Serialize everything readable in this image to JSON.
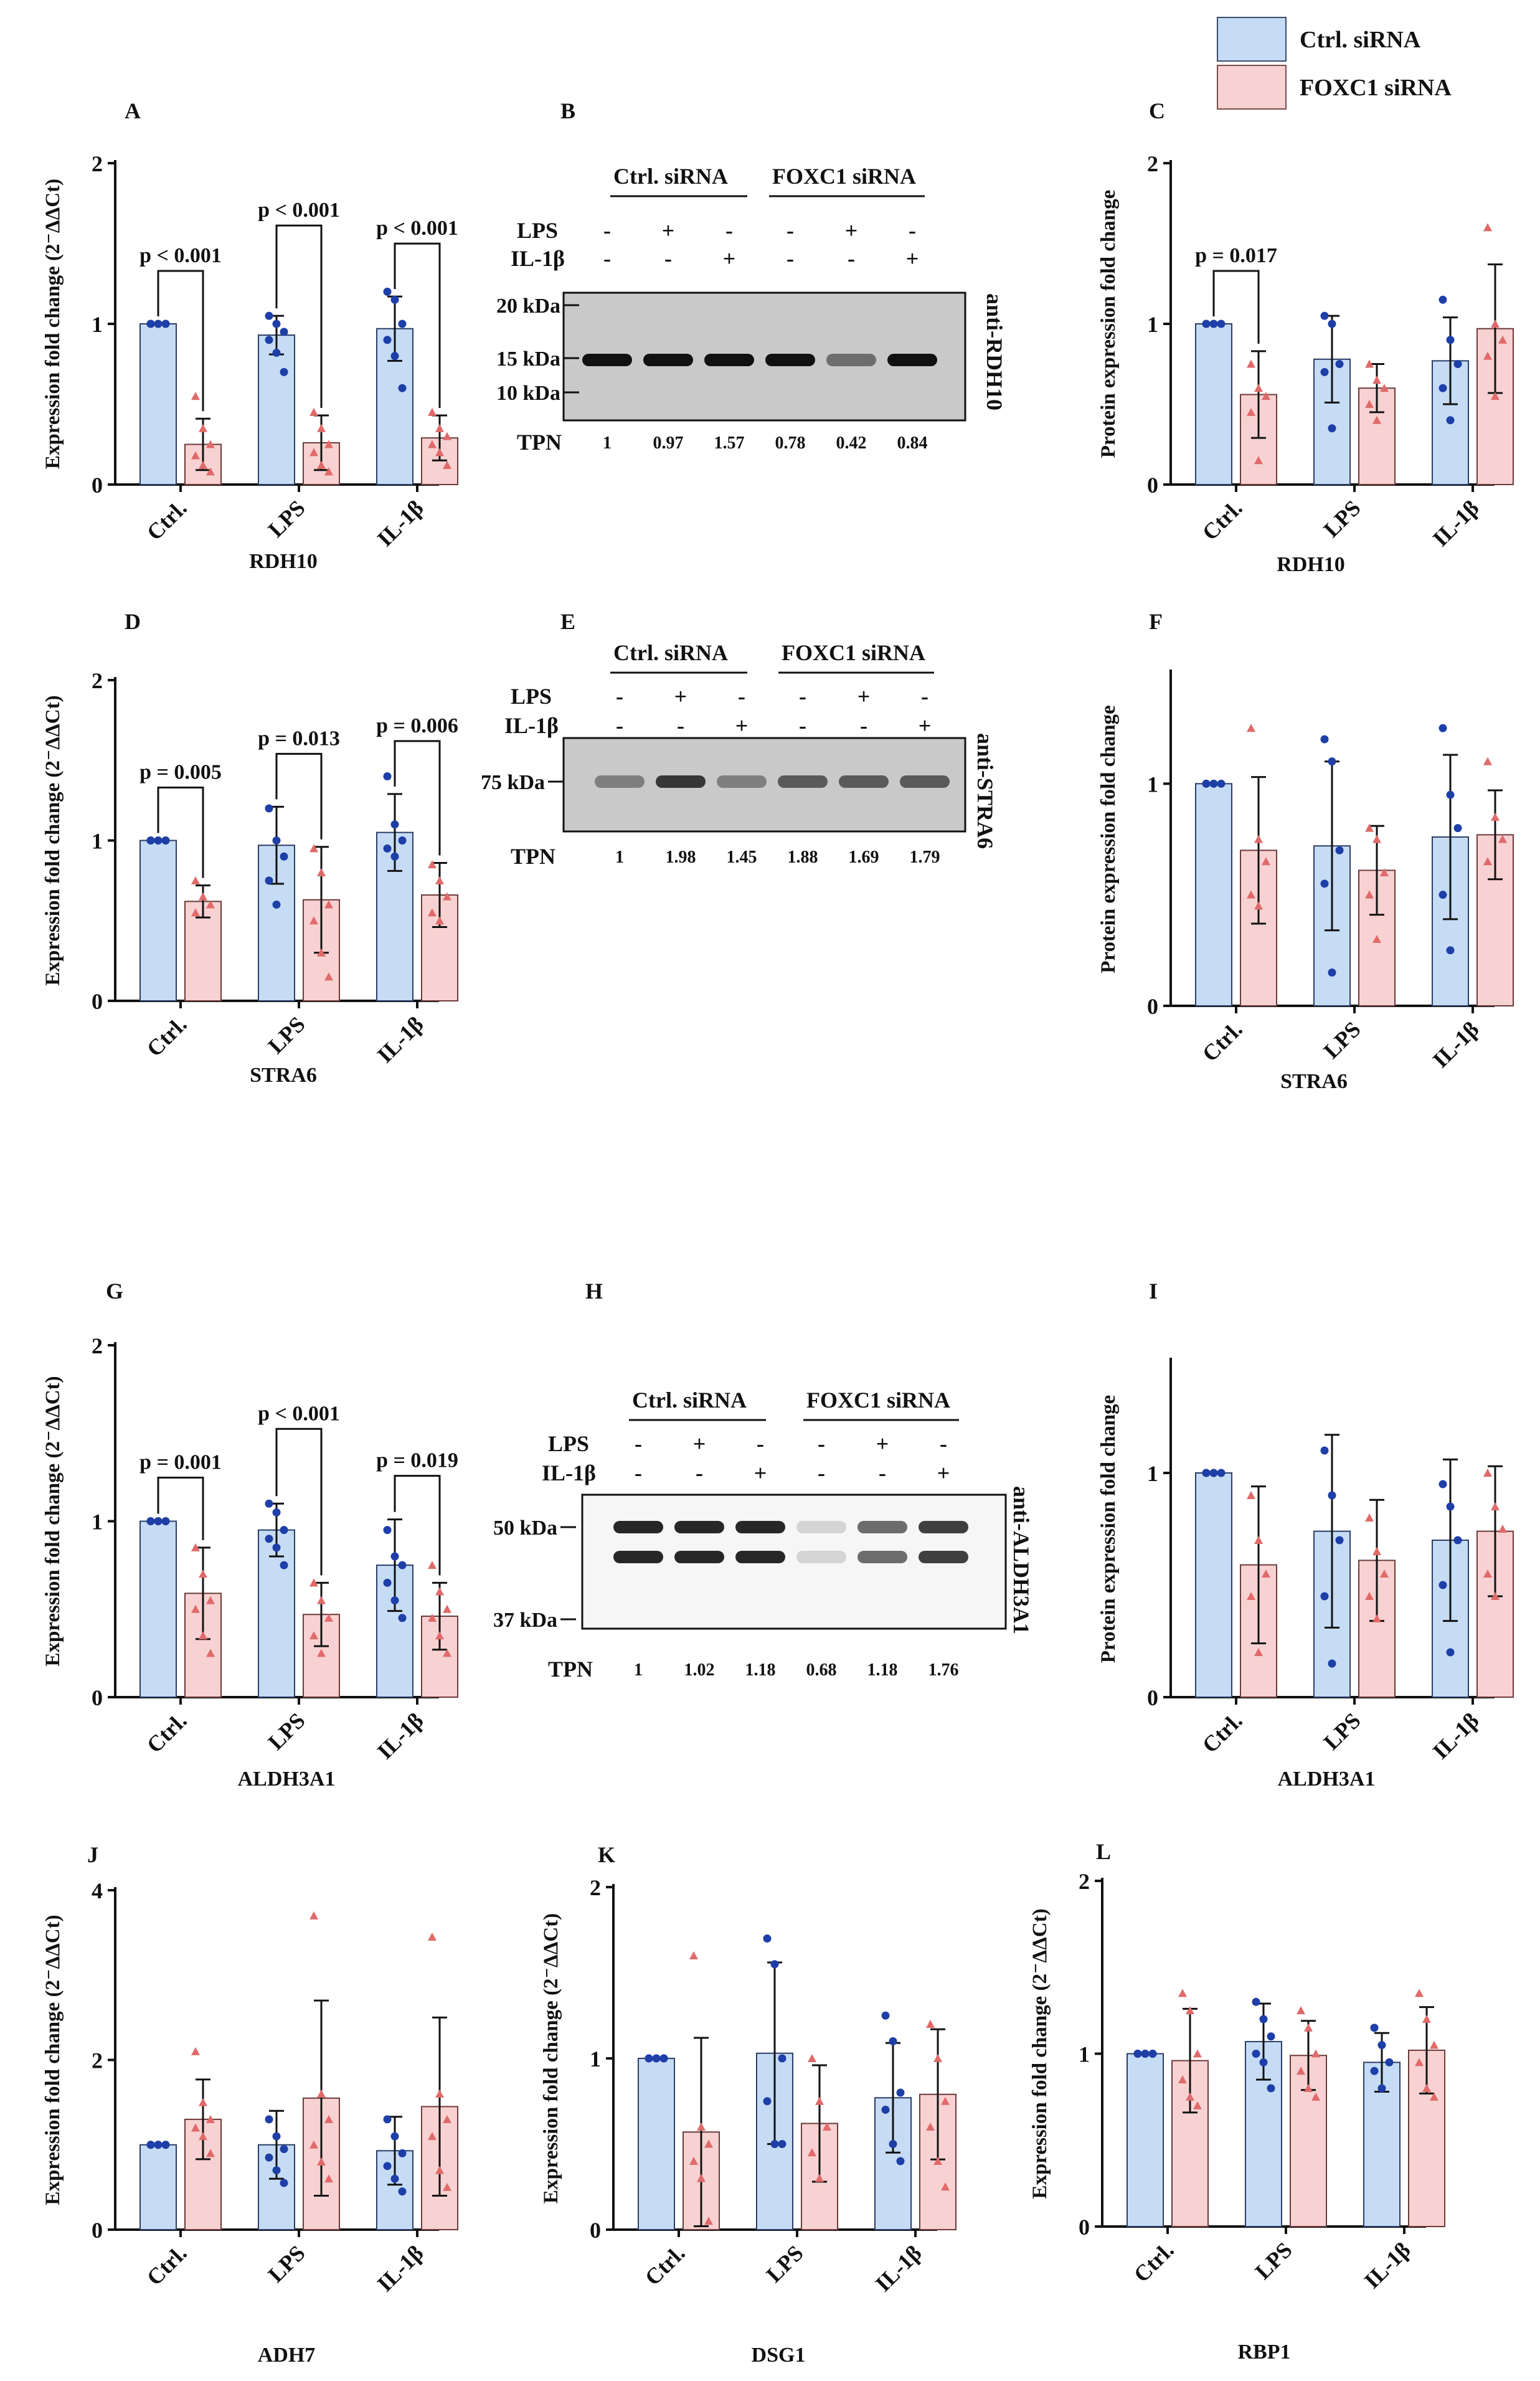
{
  "legend": {
    "items": [
      {
        "label": "Ctrl. siRNA",
        "fill": "#c6dcf5",
        "stroke": "#3a4a6a"
      },
      {
        "label": "FOXC1 siRNA",
        "fill": "#f8d2d2",
        "stroke": "#7a4a4a"
      }
    ]
  },
  "colors": {
    "ctrl_fill": "#c6dcf5",
    "ctrl_point": "#1e3fa8",
    "foxc_fill": "#f8d2d2",
    "foxc_point": "#e06a6a"
  },
  "chart_data": [
    {
      "panel": "A",
      "type": "bar",
      "xlabel": "RDH10",
      "ylabel": "Expression fold change (2⁻ΔΔCt)",
      "ylim": [
        0,
        2
      ],
      "yticks": [
        "0",
        "1",
        "2"
      ],
      "categories": [
        "Ctrl.",
        "LPS",
        "IL-1β"
      ],
      "series": [
        {
          "name": "Ctrl. siRNA",
          "values": [
            1.0,
            0.93,
            0.97
          ],
          "sd": [
            0.0,
            0.12,
            0.2
          ],
          "points": [
            [
              1,
              1,
              1,
              1,
              1,
              1
            ],
            [
              1.05,
              1.0,
              0.95,
              0.9,
              0.82,
              0.7
            ],
            [
              1.2,
              1.15,
              1.0,
              0.9,
              0.8,
              0.6
            ]
          ]
        },
        {
          "name": "FOXC1 siRNA",
          "values": [
            0.25,
            0.26,
            0.29
          ],
          "sd": [
            0.16,
            0.17,
            0.14
          ],
          "points": [
            [
              0.55,
              0.35,
              0.25,
              0.18,
              0.12,
              0.08
            ],
            [
              0.45,
              0.35,
              0.25,
              0.2,
              0.12,
              0.08
            ],
            [
              0.45,
              0.35,
              0.3,
              0.25,
              0.2,
              0.12
            ]
          ]
        }
      ],
      "pvalues": [
        "p < 0.001",
        "p < 0.001",
        "p < 0.001"
      ]
    },
    {
      "panel": "C",
      "type": "bar",
      "xlabel": "RDH10",
      "ylabel": "Protein expression fold change",
      "ylim": [
        0,
        2
      ],
      "yticks": [
        "0",
        "1",
        "2"
      ],
      "categories": [
        "Ctrl.",
        "LPS",
        "IL-1β"
      ],
      "series": [
        {
          "name": "Ctrl. siRNA",
          "values": [
            1.0,
            0.78,
            0.77
          ],
          "sd": [
            0.0,
            0.27,
            0.27
          ],
          "points": [
            [
              1,
              1,
              1,
              1,
              1
            ],
            [
              1.05,
              1.0,
              0.75,
              0.7,
              0.35
            ],
            [
              1.15,
              0.9,
              0.75,
              0.6,
              0.4
            ]
          ]
        },
        {
          "name": "FOXC1 siRNA",
          "values": [
            0.56,
            0.6,
            0.97
          ],
          "sd": [
            0.27,
            0.15,
            0.4
          ],
          "points": [
            [
              0.75,
              0.6,
              0.55,
              0.45,
              0.15
            ],
            [
              0.75,
              0.65,
              0.6,
              0.5,
              0.4
            ],
            [
              1.6,
              1.0,
              0.9,
              0.8,
              0.55
            ]
          ]
        }
      ],
      "pvalues": [
        "p = 0.017",
        "",
        ""
      ]
    },
    {
      "panel": "D",
      "type": "bar",
      "xlabel": "STRA6",
      "ylabel": "Expression fold change (2⁻ΔΔCt)",
      "ylim": [
        0,
        2
      ],
      "yticks": [
        "0",
        "1",
        "2"
      ],
      "categories": [
        "Ctrl.",
        "LPS",
        "IL-1β"
      ],
      "series": [
        {
          "name": "Ctrl. siRNA",
          "values": [
            1.0,
            0.97,
            1.05
          ],
          "sd": [
            0.0,
            0.24,
            0.24
          ],
          "points": [
            [
              1,
              1,
              1,
              1,
              1,
              1
            ],
            [
              1.2,
              1.0,
              0.9,
              0.75,
              0.6
            ],
            [
              1.4,
              1.1,
              1.0,
              0.95,
              0.9
            ]
          ]
        },
        {
          "name": "FOXC1 siRNA",
          "values": [
            0.62,
            0.63,
            0.66
          ],
          "sd": [
            0.1,
            0.33,
            0.2
          ],
          "points": [
            [
              0.75,
              0.65,
              0.6,
              0.55
            ],
            [
              0.95,
              0.8,
              0.6,
              0.5,
              0.3,
              0.15
            ],
            [
              0.85,
              0.75,
              0.65,
              0.55,
              0.5
            ]
          ]
        }
      ],
      "pvalues": [
        "p = 0.005",
        "p = 0.013",
        "p = 0.006"
      ]
    },
    {
      "panel": "F",
      "type": "bar",
      "xlabel": "STRA6",
      "ylabel": "Protein expression fold change",
      "ylim": [
        0,
        1.5
      ],
      "yticks": [
        "0",
        "1"
      ],
      "categories": [
        "Ctrl.",
        "LPS",
        "IL-1β"
      ],
      "series": [
        {
          "name": "Ctrl. siRNA",
          "values": [
            1.0,
            0.72,
            0.76
          ],
          "sd": [
            0.0,
            0.38,
            0.37
          ],
          "points": [
            [
              1,
              1,
              1,
              1,
              1
            ],
            [
              1.2,
              1.1,
              0.7,
              0.55,
              0.15
            ],
            [
              1.25,
              0.95,
              0.8,
              0.5,
              0.25
            ]
          ]
        },
        {
          "name": "FOXC1 siRNA",
          "values": [
            0.7,
            0.61,
            0.77
          ],
          "sd": [
            0.33,
            0.2,
            0.2
          ],
          "points": [
            [
              1.25,
              0.75,
              0.65,
              0.5,
              0.45
            ],
            [
              0.8,
              0.75,
              0.6,
              0.5,
              0.3
            ],
            [
              1.1,
              0.85,
              0.75,
              0.65
            ]
          ]
        }
      ],
      "pvalues": [
        "",
        "",
        ""
      ]
    },
    {
      "panel": "G",
      "type": "bar",
      "xlabel": "ALDH3A1",
      "ylabel": "Expression fold change (2⁻ΔΔCt)",
      "ylim": [
        0,
        2
      ],
      "yticks": [
        "0",
        "1",
        "2"
      ],
      "categories": [
        "Ctrl.",
        "LPS",
        "IL-1β"
      ],
      "series": [
        {
          "name": "Ctrl. siRNA",
          "values": [
            1.0,
            0.95,
            0.75
          ],
          "sd": [
            0.0,
            0.15,
            0.26
          ],
          "points": [
            [
              1,
              1,
              1,
              1,
              1,
              1
            ],
            [
              1.1,
              1.05,
              0.95,
              0.9,
              0.85,
              0.75
            ],
            [
              0.95,
              0.8,
              0.75,
              0.65,
              0.55,
              0.45
            ]
          ]
        },
        {
          "name": "FOXC1 siRNA",
          "values": [
            0.59,
            0.47,
            0.46
          ],
          "sd": [
            0.26,
            0.18,
            0.19
          ],
          "points": [
            [
              0.85,
              0.7,
              0.55,
              0.5,
              0.35,
              0.25
            ],
            [
              0.65,
              0.55,
              0.45,
              0.35,
              0.25
            ],
            [
              0.75,
              0.6,
              0.5,
              0.45,
              0.35,
              0.25
            ]
          ]
        }
      ],
      "pvalues": [
        "p = 0.001",
        "p < 0.001",
        "p = 0.019"
      ]
    },
    {
      "panel": "I",
      "type": "bar",
      "xlabel": "ALDH3A1",
      "ylabel": "Protein expression fold change",
      "ylim": [
        0,
        1.5
      ],
      "yticks": [
        "0",
        "1"
      ],
      "categories": [
        "Ctrl.",
        "LPS",
        "IL-1β"
      ],
      "series": [
        {
          "name": "Ctrl. siRNA",
          "values": [
            1.0,
            0.74,
            0.7
          ],
          "sd": [
            0.0,
            0.43,
            0.36
          ],
          "points": [
            [
              1,
              1,
              1,
              1,
              1
            ],
            [
              1.1,
              0.9,
              0.7,
              0.45,
              0.15
            ],
            [
              0.95,
              0.85,
              0.7,
              0.5,
              0.2
            ]
          ]
        },
        {
          "name": "FOXC1 siRNA",
          "values": [
            0.59,
            0.61,
            0.74
          ],
          "sd": [
            0.35,
            0.27,
            0.29
          ],
          "points": [
            [
              0.9,
              0.7,
              0.55,
              0.45,
              0.2
            ],
            [
              0.8,
              0.65,
              0.55,
              0.45,
              0.35
            ],
            [
              1.0,
              0.85,
              0.75,
              0.55,
              0.45
            ]
          ]
        }
      ],
      "pvalues": [
        "",
        "",
        ""
      ]
    },
    {
      "panel": "J",
      "type": "bar",
      "xlabel": "ADH7",
      "ylabel": "Expression fold change (2⁻ΔΔCt)",
      "ylim": [
        0,
        4
      ],
      "yticks": [
        "0",
        "2",
        "4"
      ],
      "categories": [
        "Ctrl.",
        "LPS",
        "IL-1β"
      ],
      "series": [
        {
          "name": "Ctrl. siRNA",
          "values": [
            1.0,
            1.0,
            0.93
          ],
          "sd": [
            0.0,
            0.4,
            0.4
          ],
          "points": [
            [
              1,
              1,
              1,
              1,
              1,
              1
            ],
            [
              1.3,
              1.1,
              0.95,
              0.85,
              0.7,
              0.55
            ],
            [
              1.3,
              1.1,
              0.9,
              0.75,
              0.6,
              0.45
            ]
          ]
        },
        {
          "name": "FOXC1 siRNA",
          "values": [
            1.3,
            1.55,
            1.45
          ],
          "sd": [
            0.47,
            1.15,
            1.05
          ],
          "points": [
            [
              2.1,
              1.5,
              1.3,
              1.2,
              1.1,
              0.9
            ],
            [
              3.7,
              1.6,
              1.3,
              1.0,
              0.8,
              0.6
            ],
            [
              3.45,
              1.6,
              1.3,
              1.1,
              0.7,
              0.5
            ]
          ]
        }
      ],
      "pvalues": [
        "",
        "",
        ""
      ]
    },
    {
      "panel": "K",
      "type": "bar",
      "xlabel": "DSG1",
      "ylabel": "Expression fold change (2⁻ΔΔCt)",
      "ylim": [
        0,
        2
      ],
      "yticks": [
        "0",
        "1",
        "2"
      ],
      "categories": [
        "Ctrl.",
        "LPS",
        "IL-1β"
      ],
      "series": [
        {
          "name": "Ctrl. siRNA",
          "values": [
            1.0,
            1.03,
            0.77
          ],
          "sd": [
            0.0,
            0.53,
            0.32
          ],
          "points": [
            [
              1,
              1,
              1,
              1,
              1,
              1
            ],
            [
              1.7,
              1.55,
              1.0,
              0.75,
              0.5,
              0.5
            ],
            [
              1.25,
              1.1,
              0.8,
              0.7,
              0.5,
              0.4
            ]
          ]
        },
        {
          "name": "FOXC1 siRNA",
          "values": [
            0.57,
            0.62,
            0.79
          ],
          "sd": [
            0.55,
            0.34,
            0.38
          ],
          "points": [
            [
              1.6,
              0.6,
              0.5,
              0.4,
              0.3,
              0.05
            ],
            [
              1.0,
              0.75,
              0.6,
              0.45,
              0.3
            ],
            [
              1.2,
              1.0,
              0.75,
              0.6,
              0.4,
              0.25
            ]
          ]
        }
      ],
      "pvalues": [
        "",
        "",
        ""
      ]
    },
    {
      "panel": "L",
      "type": "bar",
      "xlabel": "RBP1",
      "ylabel": "Expression fold change (2⁻ΔΔCt)",
      "ylim": [
        0,
        2
      ],
      "yticks": [
        "0",
        "1",
        "2"
      ],
      "categories": [
        "Ctrl.",
        "LPS",
        "IL-1β"
      ],
      "series": [
        {
          "name": "Ctrl. siRNA",
          "values": [
            1.0,
            1.07,
            0.95
          ],
          "sd": [
            0.0,
            0.22,
            0.17
          ],
          "points": [
            [
              1,
              1,
              1,
              1,
              1,
              1
            ],
            [
              1.3,
              1.2,
              1.1,
              1.0,
              0.95,
              0.8
            ],
            [
              1.15,
              1.05,
              0.95,
              0.9,
              0.8
            ]
          ]
        },
        {
          "name": "FOXC1 siRNA",
          "values": [
            0.96,
            0.99,
            1.02
          ],
          "sd": [
            0.3,
            0.2,
            0.25
          ],
          "points": [
            [
              1.35,
              1.25,
              1.0,
              0.85,
              0.75,
              0.7
            ],
            [
              1.25,
              1.15,
              1.0,
              0.9,
              0.8,
              0.75
            ],
            [
              1.35,
              1.2,
              1.05,
              0.95,
              0.8,
              0.75
            ]
          ]
        }
      ],
      "pvalues": [
        "",
        "",
        ""
      ]
    }
  ],
  "blots": [
    {
      "panel": "B",
      "antibody": "anti-RDH10",
      "group1": "Ctrl. siRNA",
      "group2": "FOXC1 siRNA",
      "row1_label": "LPS",
      "row2_label": "IL-1β",
      "lps": [
        "-",
        "+",
        "-",
        "-",
        "+",
        "-"
      ],
      "il1b": [
        "-",
        "-",
        "+",
        "-",
        "-",
        "+"
      ],
      "markers": [
        "20 kDa",
        "15 kDa",
        "10 kDa"
      ],
      "tpn_label": "TPN",
      "tpn": [
        "1",
        "0.97",
        "1.57",
        "0.78",
        "0.42",
        "0.84"
      ]
    },
    {
      "panel": "E",
      "antibody": "anti-STRA6",
      "group1": "Ctrl. siRNA",
      "group2": "FOXC1 siRNA",
      "row1_label": "LPS",
      "row2_label": "IL-1β",
      "lps": [
        "-",
        "+",
        "-",
        "-",
        "+",
        "-"
      ],
      "il1b": [
        "-",
        "-",
        "+",
        "-",
        "-",
        "+"
      ],
      "markers": [
        "75 kDa"
      ],
      "tpn_label": "TPN",
      "tpn": [
        "1",
        "1.98",
        "1.45",
        "1.88",
        "1.69",
        "1.79"
      ]
    },
    {
      "panel": "H",
      "antibody": "anti-ALDH3A1",
      "group1": "Ctrl. siRNA",
      "group2": "FOXC1 siRNA",
      "row1_label": "LPS",
      "row2_label": "IL-1β",
      "lps": [
        "-",
        "+",
        "-",
        "-",
        "+",
        "-"
      ],
      "il1b": [
        "-",
        "-",
        "+",
        "-",
        "-",
        "+"
      ],
      "markers": [
        "50 kDa",
        "37 kDa"
      ],
      "tpn_label": "TPN",
      "tpn": [
        "1",
        "1.02",
        "1.18",
        "0.68",
        "1.18",
        "1.76"
      ]
    }
  ]
}
